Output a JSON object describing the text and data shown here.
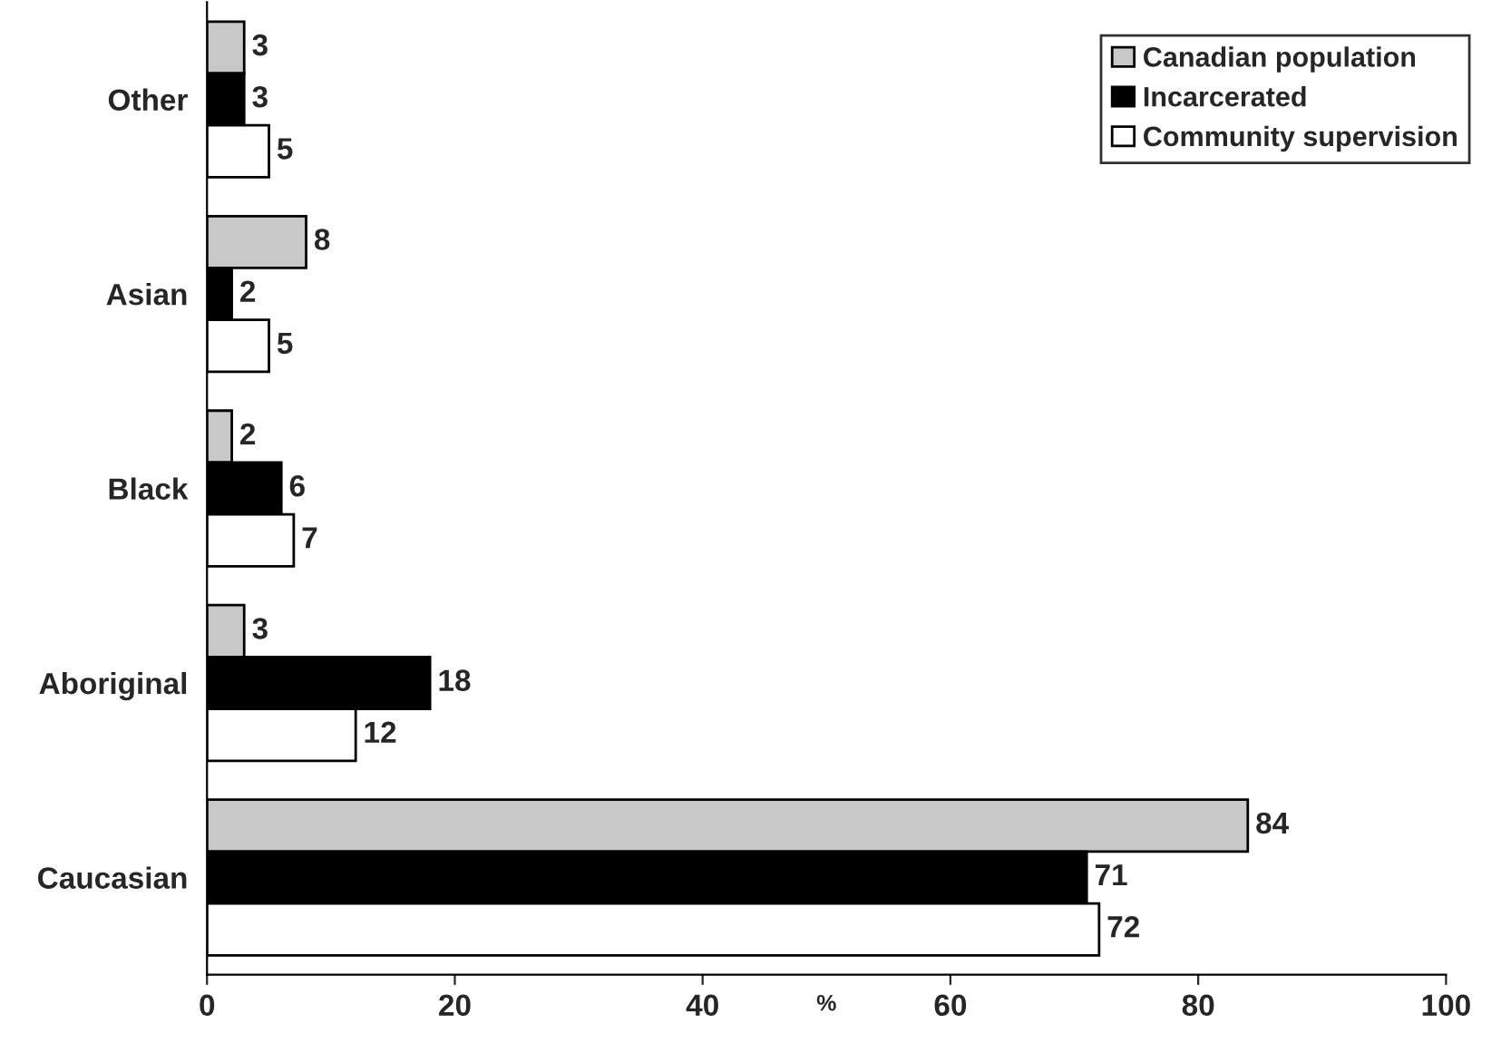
{
  "chart_data": {
    "type": "bar",
    "orientation": "horizontal",
    "xlabel": "%",
    "categories": [
      "Other",
      "Asian",
      "Black",
      "Aboriginal",
      "Caucasian"
    ],
    "series": [
      {
        "name": "Canadian population",
        "color": "#c8c8c8",
        "values": [
          3,
          8,
          2,
          3,
          84
        ]
      },
      {
        "name": "Incarcerated",
        "color": "#000000",
        "values": [
          3,
          2,
          6,
          18,
          71
        ]
      },
      {
        "name": "Community supervision",
        "color": "#ffffff",
        "values": [
          5,
          5,
          7,
          12,
          72
        ]
      }
    ],
    "xlim": [
      0,
      100
    ],
    "xticks": [
      0,
      20,
      40,
      60,
      80,
      100
    ],
    "data_labels": true,
    "legend": "top right",
    "grid": false
  }
}
